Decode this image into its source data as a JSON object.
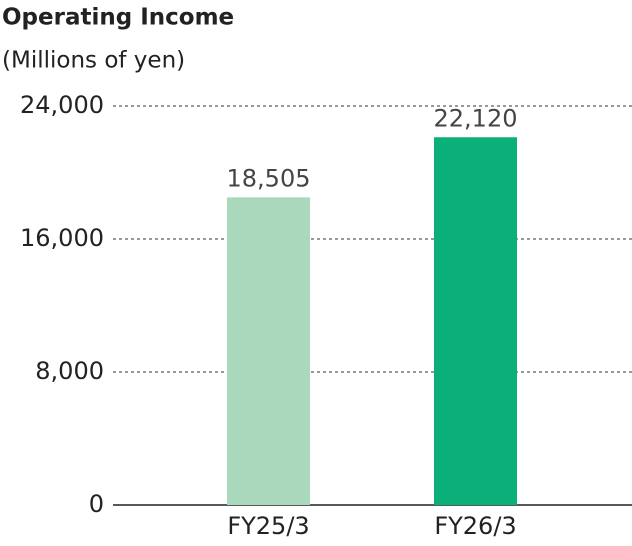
{
  "chart_data": {
    "type": "bar",
    "title": "Operating Income",
    "subtitle": "(Millions of yen)",
    "categories": [
      "FY25/3",
      "FY26/3"
    ],
    "values": [
      18505,
      22120
    ],
    "value_labels": [
      "18,505",
      "22,120"
    ],
    "colors": [
      "#a9d8bd",
      "#0aaf7a"
    ],
    "ylim": [
      0,
      24000
    ],
    "yticks": [
      {
        "value": 0,
        "label": "0"
      },
      {
        "value": 8000,
        "label": "8,000"
      },
      {
        "value": 16000,
        "label": "16,000"
      },
      {
        "value": 24000,
        "label": "24,000"
      }
    ],
    "grid": true
  }
}
